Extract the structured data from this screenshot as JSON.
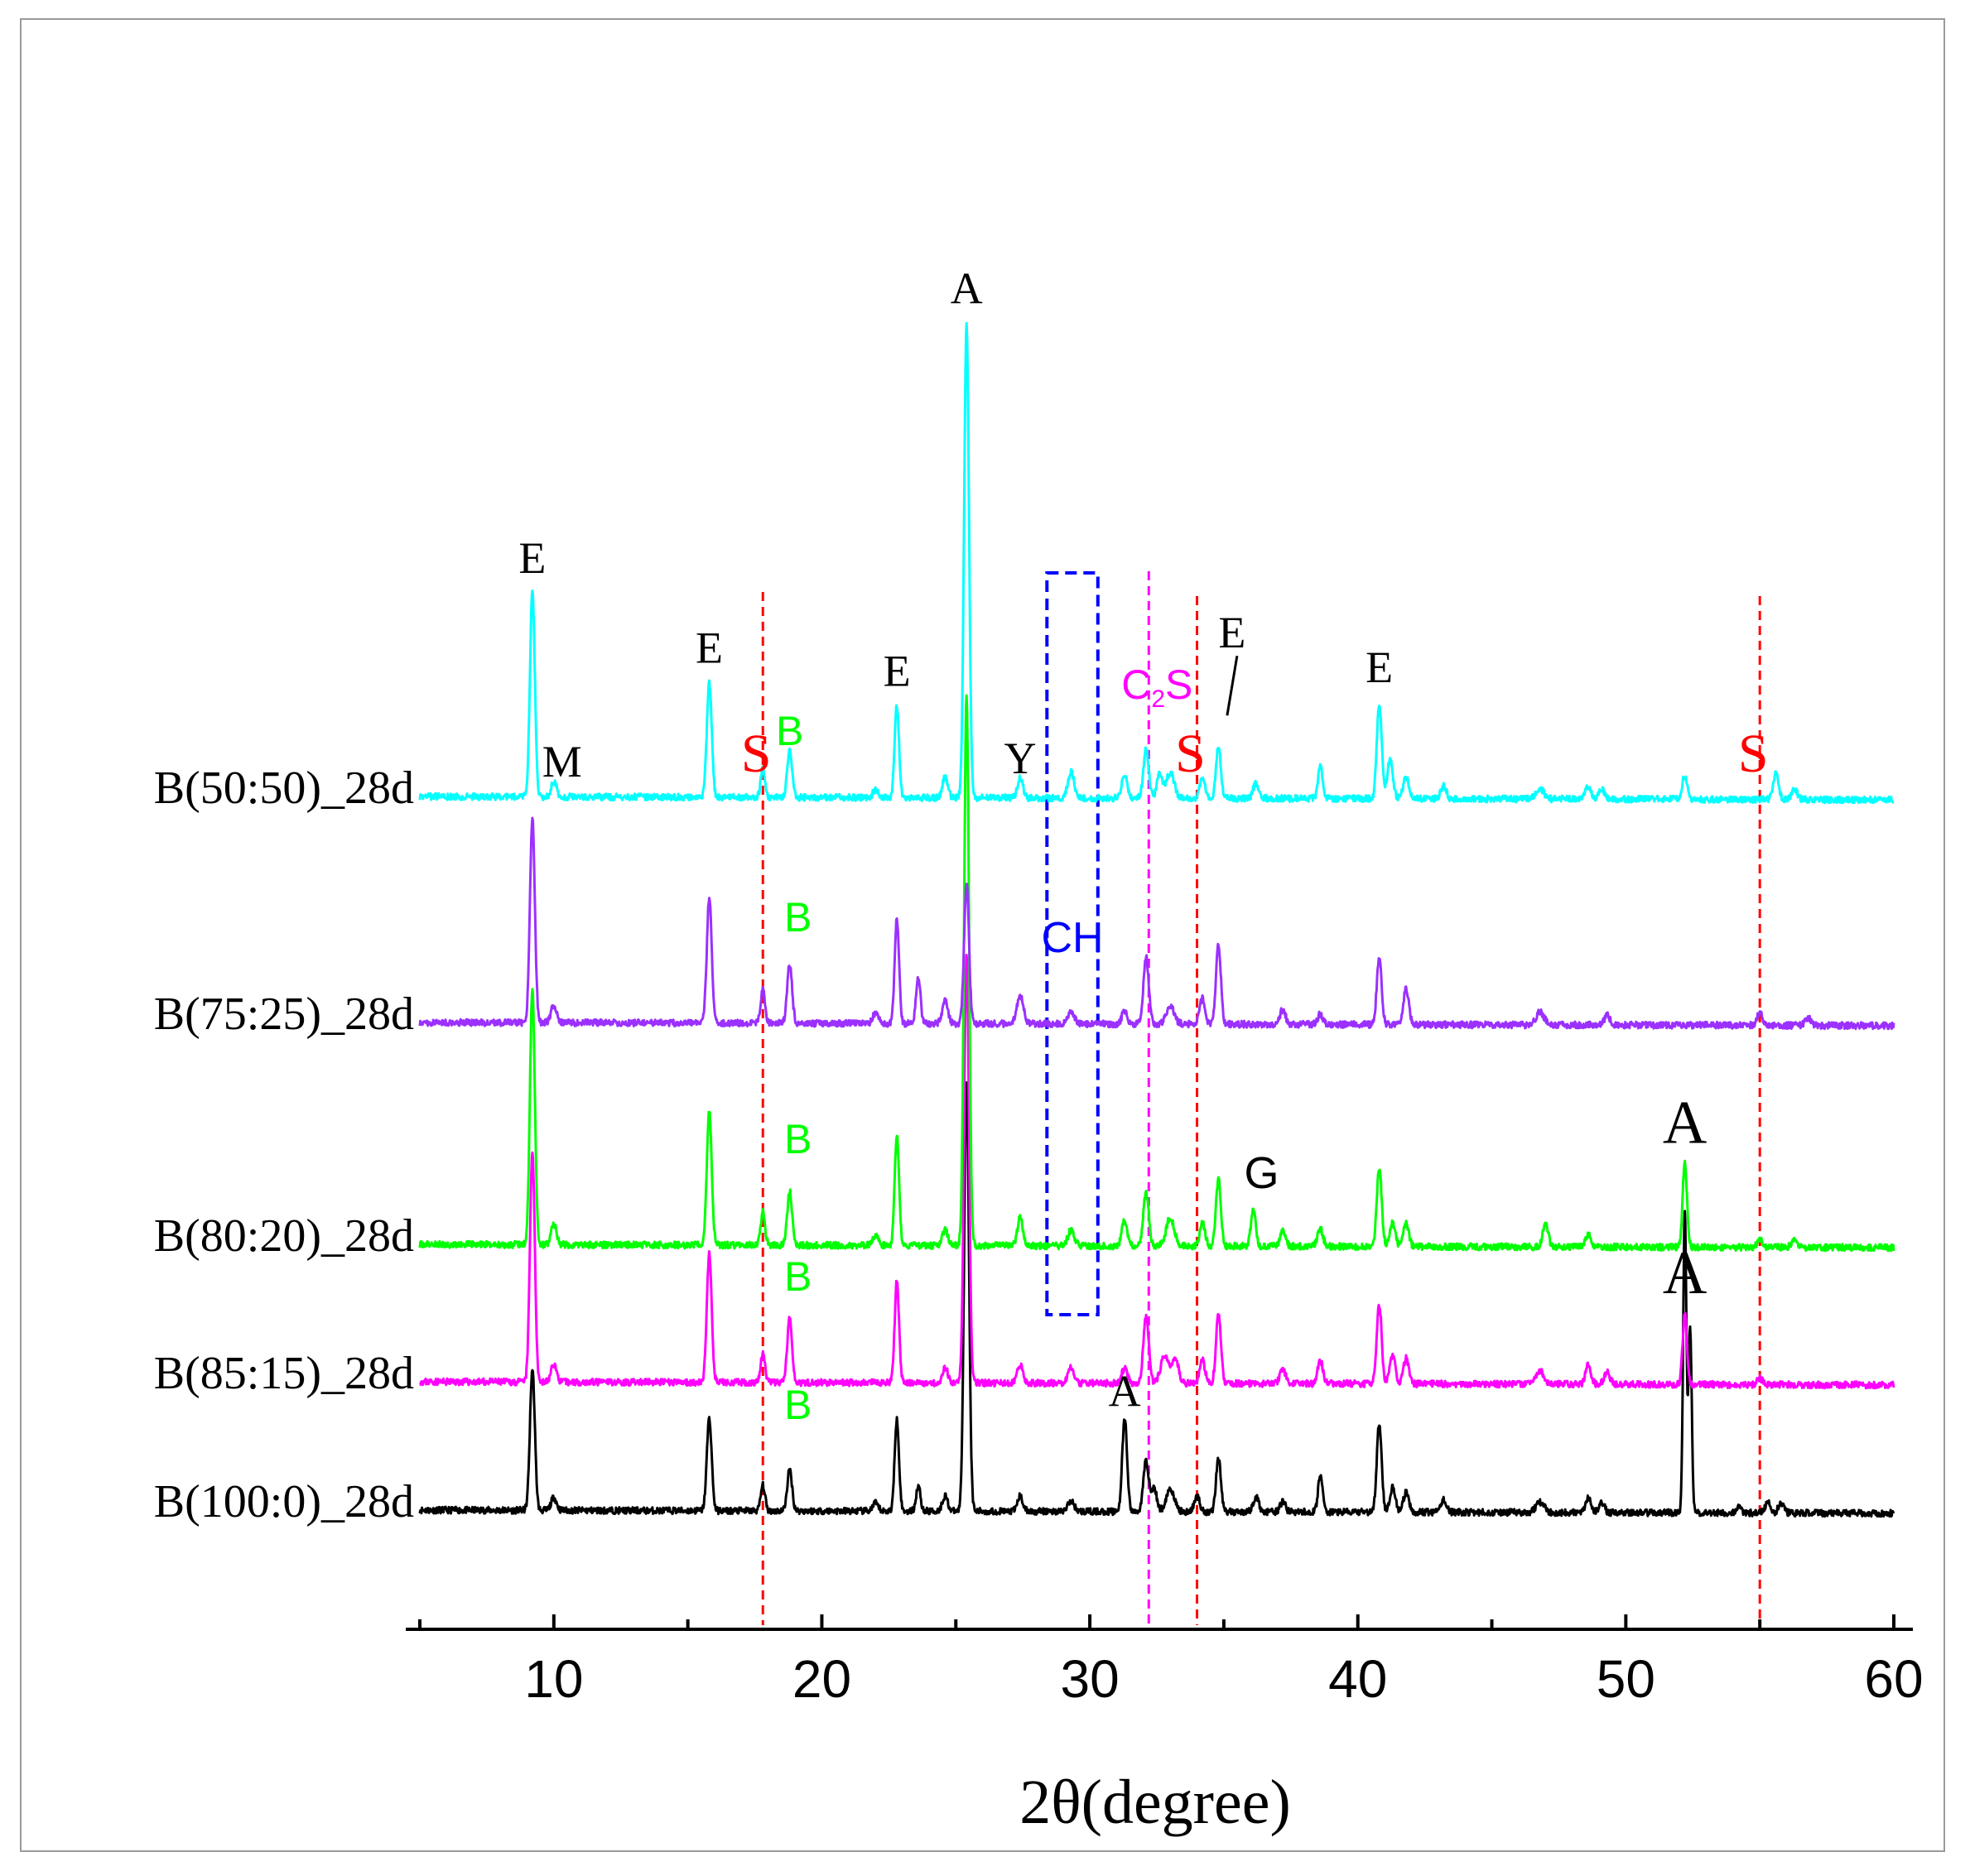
{
  "chart_data": {
    "type": "line",
    "title": "",
    "xlabel": "2θ(degree)",
    "ylabel": "",
    "xlim": [
      5,
      60
    ],
    "xticks": [
      10,
      20,
      30,
      40,
      50,
      60
    ],
    "tick_labels": [
      "10",
      "20",
      "30",
      "40",
      "50",
      "60"
    ],
    "grid": false,
    "series": [
      {
        "name": "B(100:0)_28d",
        "color": "#000000",
        "baseline": 0,
        "slope": 0.3,
        "noise": 2.6,
        "seed": 11,
        "peaks": [
          [
            9.2,
            110,
            0.09
          ],
          [
            10.0,
            10,
            0.1
          ],
          [
            15.8,
            72,
            0.09
          ],
          [
            17.8,
            20,
            0.08
          ],
          [
            18.8,
            32,
            0.09
          ],
          [
            22.0,
            6,
            0.1
          ],
          [
            22.8,
            72,
            0.08
          ],
          [
            23.6,
            20,
            0.08
          ],
          [
            24.6,
            12,
            0.1
          ],
          [
            25.4,
            335,
            0.09
          ],
          [
            27.4,
            12,
            0.1
          ],
          [
            29.3,
            8,
            0.12
          ],
          [
            31.3,
            72,
            0.09
          ],
          [
            32.1,
            40,
            0.1
          ],
          [
            32.4,
            18,
            0.1
          ],
          [
            33.0,
            18,
            0.15
          ],
          [
            34.0,
            12,
            0.1
          ],
          [
            34.8,
            42,
            0.09
          ],
          [
            36.2,
            12,
            0.1
          ],
          [
            37.2,
            8,
            0.1
          ],
          [
            38.6,
            30,
            0.08
          ],
          [
            40.8,
            70,
            0.09
          ],
          [
            41.3,
            20,
            0.1
          ],
          [
            41.8,
            15,
            0.1
          ],
          [
            43.2,
            10,
            0.1
          ],
          [
            46.8,
            8,
            0.15
          ],
          [
            48.6,
            12,
            0.1
          ],
          [
            49.1,
            8,
            0.1
          ],
          [
            52.2,
            235,
            0.06
          ],
          [
            52.4,
            145,
            0.06
          ],
          [
            54.2,
            4,
            0.1
          ],
          [
            55.3,
            8,
            0.1
          ],
          [
            55.8,
            8,
            0.1
          ]
        ]
      },
      {
        "name": "B(85:15)_28d",
        "color": "#ff00ff",
        "baseline": 100,
        "slope": 0.3,
        "noise": 2.6,
        "seed": 23,
        "peaks": [
          [
            9.2,
            180,
            0.09
          ],
          [
            10.0,
            14,
            0.1
          ],
          [
            15.8,
            100,
            0.09
          ],
          [
            17.8,
            22,
            0.08
          ],
          [
            18.8,
            50,
            0.09
          ],
          [
            22.8,
            80,
            0.08
          ],
          [
            24.6,
            12,
            0.1
          ],
          [
            25.4,
            335,
            0.09
          ],
          [
            27.4,
            14,
            0.1
          ],
          [
            29.3,
            12,
            0.12
          ],
          [
            31.3,
            12,
            0.1
          ],
          [
            32.1,
            52,
            0.1
          ],
          [
            32.8,
            22,
            0.15
          ],
          [
            33.2,
            18,
            0.12
          ],
          [
            34.2,
            18,
            0.1
          ],
          [
            34.8,
            55,
            0.09
          ],
          [
            37.2,
            12,
            0.1
          ],
          [
            38.6,
            18,
            0.1
          ],
          [
            40.8,
            62,
            0.09
          ],
          [
            41.3,
            22,
            0.1
          ],
          [
            41.8,
            20,
            0.1
          ],
          [
            46.8,
            10,
            0.15
          ],
          [
            48.6,
            15,
            0.1
          ],
          [
            49.3,
            10,
            0.1
          ],
          [
            52.2,
            55,
            0.08
          ],
          [
            55.0,
            5,
            0.1
          ]
        ]
      },
      {
        "name": "B(80:20)_28d",
        "color": "#00ff00",
        "baseline": 207,
        "slope": 0.3,
        "noise": 2.6,
        "seed": 37,
        "peaks": [
          [
            9.2,
            200,
            0.09
          ],
          [
            10.0,
            16,
            0.1
          ],
          [
            15.8,
            104,
            0.09
          ],
          [
            17.8,
            26,
            0.08
          ],
          [
            18.8,
            42,
            0.09
          ],
          [
            22.0,
            8,
            0.1
          ],
          [
            22.8,
            86,
            0.08
          ],
          [
            24.6,
            12,
            0.1
          ],
          [
            25.4,
            430,
            0.09
          ],
          [
            27.4,
            22,
            0.1
          ],
          [
            29.3,
            12,
            0.12
          ],
          [
            31.3,
            20,
            0.1
          ],
          [
            32.1,
            42,
            0.1
          ],
          [
            33.0,
            22,
            0.15
          ],
          [
            34.2,
            18,
            0.1
          ],
          [
            34.8,
            52,
            0.09
          ],
          [
            36.1,
            28,
            0.09
          ],
          [
            37.2,
            12,
            0.1
          ],
          [
            38.6,
            14,
            0.1
          ],
          [
            40.8,
            62,
            0.09
          ],
          [
            41.3,
            18,
            0.1
          ],
          [
            41.8,
            18,
            0.1
          ],
          [
            47.0,
            18,
            0.1
          ],
          [
            48.6,
            10,
            0.1
          ],
          [
            52.2,
            65,
            0.08
          ],
          [
            55.0,
            6,
            0.1
          ],
          [
            56.3,
            6,
            0.1
          ]
        ]
      },
      {
        "name": "B(75:25)_28d",
        "color": "#9b30ff",
        "baseline": 380,
        "slope": 0.3,
        "noise": 2.6,
        "seed": 51,
        "peaks": [
          [
            9.2,
            160,
            0.09
          ],
          [
            10.0,
            14,
            0.1
          ],
          [
            15.8,
            98,
            0.09
          ],
          [
            17.8,
            26,
            0.08
          ],
          [
            18.8,
            46,
            0.09
          ],
          [
            22.0,
            8,
            0.1
          ],
          [
            22.8,
            82,
            0.08
          ],
          [
            23.6,
            36,
            0.08
          ],
          [
            24.6,
            18,
            0.1
          ],
          [
            25.4,
            110,
            0.09
          ],
          [
            27.4,
            22,
            0.12
          ],
          [
            29.3,
            10,
            0.12
          ],
          [
            31.3,
            10,
            0.1
          ],
          [
            32.1,
            52,
            0.1
          ],
          [
            33.0,
            14,
            0.15
          ],
          [
            34.2,
            20,
            0.1
          ],
          [
            34.8,
            62,
            0.09
          ],
          [
            37.2,
            12,
            0.1
          ],
          [
            38.6,
            8,
            0.1
          ],
          [
            40.8,
            52,
            0.09
          ],
          [
            41.8,
            28,
            0.1
          ],
          [
            46.8,
            10,
            0.15
          ],
          [
            49.3,
            8,
            0.1
          ],
          [
            55.0,
            10,
            0.1
          ],
          [
            56.8,
            6,
            0.1
          ]
        ]
      },
      {
        "name": "B(50:50)_28d",
        "color": "#00ffff",
        "baseline": 556,
        "slope": 0.3,
        "noise": 2.6,
        "seed": 67,
        "peaks": [
          [
            9.2,
            160,
            0.09
          ],
          [
            10.0,
            12,
            0.1
          ],
          [
            15.8,
            90,
            0.09
          ],
          [
            17.8,
            22,
            0.08
          ],
          [
            18.8,
            36,
            0.09
          ],
          [
            22.0,
            6,
            0.1
          ],
          [
            22.8,
            72,
            0.08
          ],
          [
            24.6,
            16,
            0.1
          ],
          [
            25.4,
            370,
            0.09
          ],
          [
            27.4,
            16,
            0.1
          ],
          [
            29.3,
            20,
            0.12
          ],
          [
            31.3,
            18,
            0.1
          ],
          [
            32.1,
            38,
            0.1
          ],
          [
            32.6,
            18,
            0.1
          ],
          [
            33.0,
            20,
            0.15
          ],
          [
            34.2,
            16,
            0.1
          ],
          [
            34.8,
            40,
            0.09
          ],
          [
            36.2,
            12,
            0.1
          ],
          [
            38.6,
            26,
            0.08
          ],
          [
            40.8,
            75,
            0.09
          ],
          [
            41.2,
            30,
            0.1
          ],
          [
            41.8,
            18,
            0.1
          ],
          [
            43.2,
            10,
            0.1
          ],
          [
            46.8,
            8,
            0.15
          ],
          [
            48.6,
            10,
            0.1
          ],
          [
            49.1,
            8,
            0.1
          ],
          [
            52.2,
            18,
            0.1
          ],
          [
            55.6,
            20,
            0.1
          ],
          [
            56.3,
            8,
            0.1
          ]
        ]
      }
    ],
    "reference_lines": [
      {
        "name": "S",
        "x": 17.8,
        "color": "#ff0000"
      },
      {
        "name": "C2S",
        "x": 32.2,
        "color": "#ff00ff"
      },
      {
        "name": "S",
        "x": 34.0,
        "color": "#ff0000"
      },
      {
        "name": "S",
        "x": 55.0,
        "color": "#ff0000"
      }
    ],
    "highlight_box": {
      "label": "CH",
      "x_range": [
        28.4,
        30.3
      ],
      "color": "#0000ff"
    },
    "annotations": [
      {
        "text": "E",
        "x": 9.2,
        "series": "B(50:50)_28d",
        "color": "#000000"
      },
      {
        "text": "M",
        "x": 10.0,
        "series": "B(50:50)_28d",
        "color": "#000000"
      },
      {
        "text": "E",
        "x": 15.8,
        "series": "B(50:50)_28d",
        "color": "#000000"
      },
      {
        "text": "S",
        "x": 17.8,
        "series": "B(50:50)_28d",
        "color": "#ff0000"
      },
      {
        "text": "B",
        "x": 18.8,
        "series": "B(50:50)_28d",
        "color": "#00ff00"
      },
      {
        "text": "E",
        "x": 22.8,
        "series": "B(50:50)_28d",
        "color": "#000000"
      },
      {
        "text": "A",
        "x": 25.4,
        "series": "B(50:50)_28d",
        "color": "#000000"
      },
      {
        "text": "Y",
        "x": 27.4,
        "series": "B(50:50)_28d",
        "color": "#000000"
      },
      {
        "text": "C",
        "sub": "2",
        "suffix": "S",
        "x": 32.2,
        "series": "B(50:50)_28d",
        "color": "#ff00ff"
      },
      {
        "text": "S",
        "x": 34.0,
        "series": "B(50:50)_28d",
        "color": "#ff0000"
      },
      {
        "text": "E",
        "x": 35.0,
        "series": "B(50:50)_28d",
        "color": "#000000"
      },
      {
        "text": "E",
        "x": 40.8,
        "series": "B(50:50)_28d",
        "color": "#000000"
      },
      {
        "text": "S",
        "x": 55.0,
        "series": "B(50:50)_28d",
        "color": "#ff0000"
      },
      {
        "text": "B",
        "x": 18.8,
        "series": "B(75:25)_28d",
        "color": "#00ff00"
      },
      {
        "text": "B",
        "x": 18.8,
        "series": "B(80:20)_28d",
        "color": "#00ff00"
      },
      {
        "text": "G",
        "x": 36.1,
        "series": "B(80:20)_28d",
        "color": "#000000"
      },
      {
        "text": "A",
        "x": 52.2,
        "series": "B(80:20)_28d",
        "color": "#000000"
      },
      {
        "text": "B",
        "x": 18.8,
        "series": "B(85:15)_28d",
        "color": "#00ff00"
      },
      {
        "text": "A",
        "x": 52.2,
        "series": "B(85:15)_28d",
        "color": "#000000"
      },
      {
        "text": "B",
        "x": 18.8,
        "series": "B(100:0)_28d",
        "color": "#00ff00"
      },
      {
        "text": "A",
        "x": 31.3,
        "series": "B(100:0)_28d",
        "color": "#000000"
      }
    ]
  }
}
